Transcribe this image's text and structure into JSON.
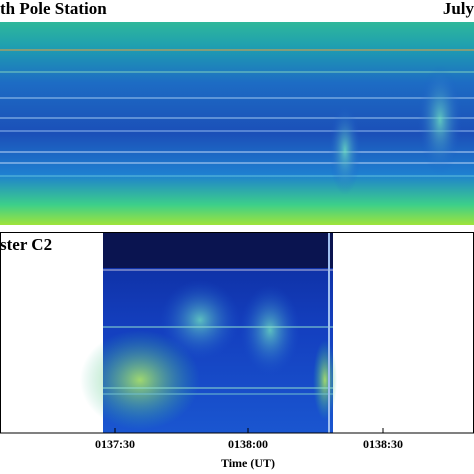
{
  "chart_data": [
    {
      "type": "spectrogram",
      "title": "th Pole Station",
      "subtitle": "July"
    },
    {
      "type": "spectrogram",
      "title": "ster C2",
      "xlabel": "Time (UT)",
      "x_tick_labels": [
        "0137:30",
        "0138:00",
        "0138:30"
      ]
    }
  ]
}
